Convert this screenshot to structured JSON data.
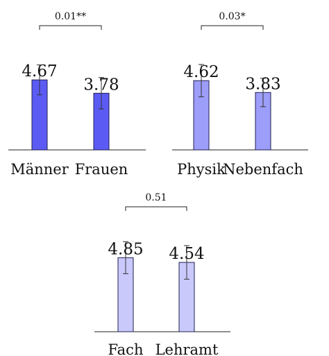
{
  "chart_data": [
    {
      "type": "bar",
      "categories": [
        "Männer",
        "Frauen"
      ],
      "values": [
        4.67,
        3.78
      ],
      "value_labels": [
        "4.67",
        "3.78"
      ],
      "error": [
        1.0,
        1.05
      ],
      "significance": "0.01**",
      "color": "#5b5bf4",
      "ylim": [
        0,
        7
      ]
    },
    {
      "type": "bar",
      "categories": [
        "Physik",
        "Nebenfach"
      ],
      "values": [
        4.62,
        3.83
      ],
      "value_labels": [
        "4.62",
        "3.83"
      ],
      "error": [
        1.08,
        0.95
      ],
      "significance": "0.03*",
      "color": "#9d9dfa",
      "ylim": [
        0,
        7
      ]
    },
    {
      "type": "bar",
      "categories": [
        "Fach",
        "Lehramt"
      ],
      "values": [
        4.85,
        4.54
      ],
      "value_labels": [
        "4.85",
        "4.54"
      ],
      "error": [
        1.05,
        1.1
      ],
      "significance": "0.51",
      "color": "#c9c9fc",
      "ylim": [
        0,
        7
      ]
    }
  ]
}
